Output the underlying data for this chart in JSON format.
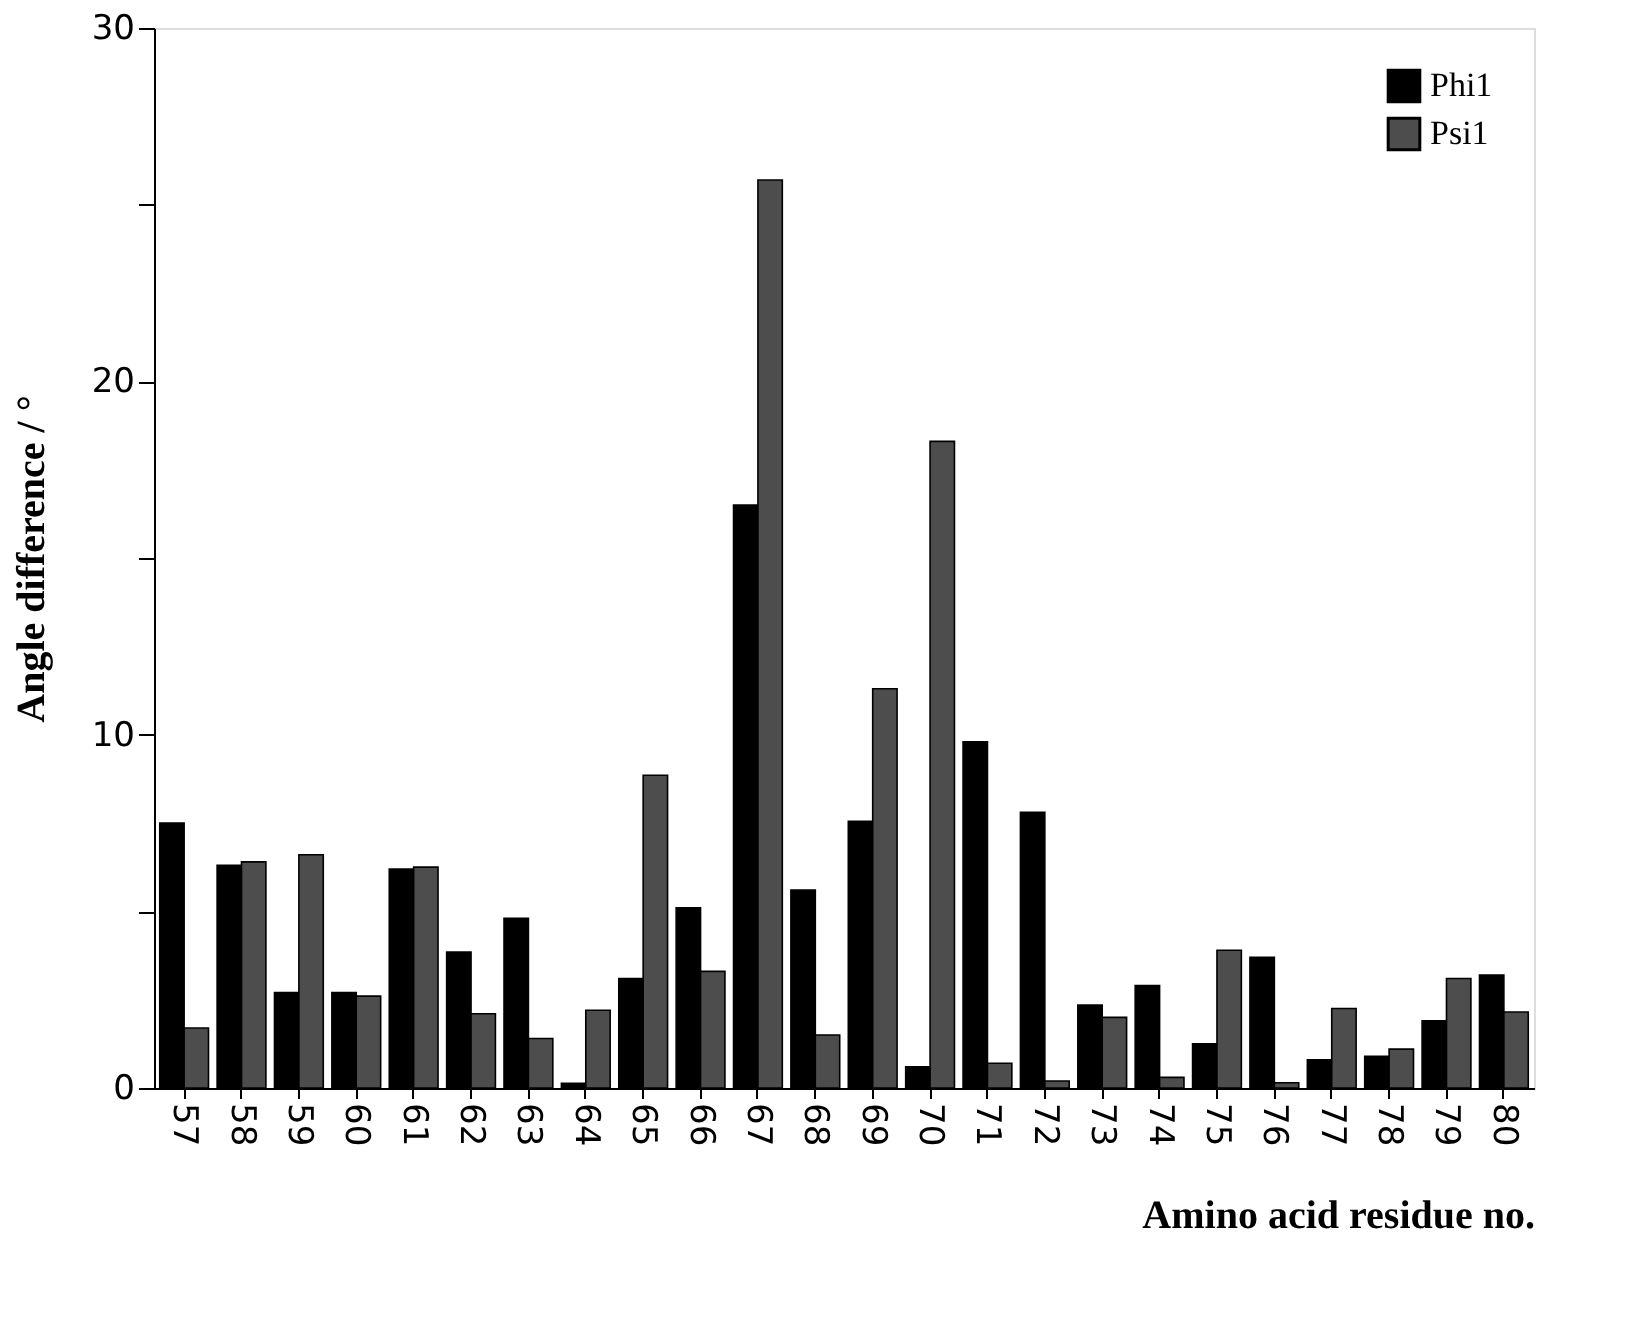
{
  "chart_data": {
    "type": "bar",
    "xlabel": "Amino acid residue no.",
    "ylabel": "Angle difference / °",
    "categories": [
      "57",
      "58",
      "59",
      "60",
      "61",
      "62",
      "63",
      "64",
      "65",
      "66",
      "67",
      "68",
      "69",
      "70",
      "71",
      "72",
      "73",
      "74",
      "75",
      "76",
      "77",
      "78",
      "79",
      "80"
    ],
    "series": [
      {
        "name": "Phi1",
        "color": "#000000",
        "values": [
          7.5,
          6.3,
          2.7,
          2.7,
          6.2,
          3.85,
          4.8,
          0.13,
          3.1,
          5.1,
          16.5,
          5.6,
          7.55,
          0.6,
          9.8,
          7.8,
          2.35,
          2.9,
          1.25,
          3.7,
          0.8,
          0.9,
          1.9,
          3.2
        ]
      },
      {
        "name": "Psi1",
        "color": "#4d4d4d",
        "values": [
          1.7,
          6.4,
          6.6,
          2.6,
          6.25,
          2.1,
          1.4,
          2.2,
          8.85,
          3.3,
          25.7,
          1.5,
          11.3,
          18.3,
          0.7,
          0.2,
          2.0,
          0.3,
          3.9,
          0.15,
          2.25,
          1.1,
          3.1,
          2.15
        ]
      }
    ],
    "ylim": [
      0,
      30
    ],
    "yticks": [
      0,
      {
        "value": 5,
        "label": null
      },
      10,
      {
        "value": 15,
        "label": null
      },
      20,
      {
        "value": 25,
        "label": null
      },
      30
    ],
    "grid": false,
    "legend": "top right"
  }
}
